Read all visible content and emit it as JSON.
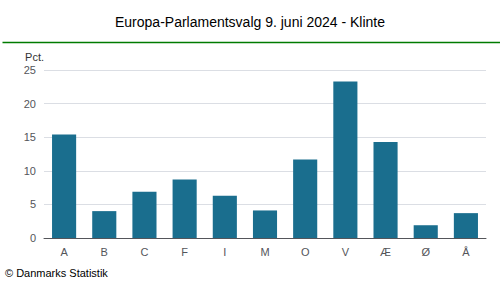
{
  "chart_data": {
    "type": "bar",
    "title": "Europa-Parlamentsvalg 9. juni 2024 - Klinte",
    "categories": [
      "A",
      "B",
      "C",
      "F",
      "I",
      "M",
      "O",
      "V",
      "Æ",
      "Ø",
      "Å"
    ],
    "values": [
      15.4,
      4.0,
      6.9,
      8.7,
      6.3,
      4.1,
      11.7,
      23.3,
      14.3,
      1.9,
      3.7
    ],
    "color": "#1a6e8e",
    "ylabel": "Pct.",
    "ylim": [
      0,
      25
    ],
    "yticks": [
      0,
      5,
      10,
      15,
      20,
      25
    ],
    "grid": true,
    "annotations": [
      "© Danmarks Statistik"
    ]
  }
}
